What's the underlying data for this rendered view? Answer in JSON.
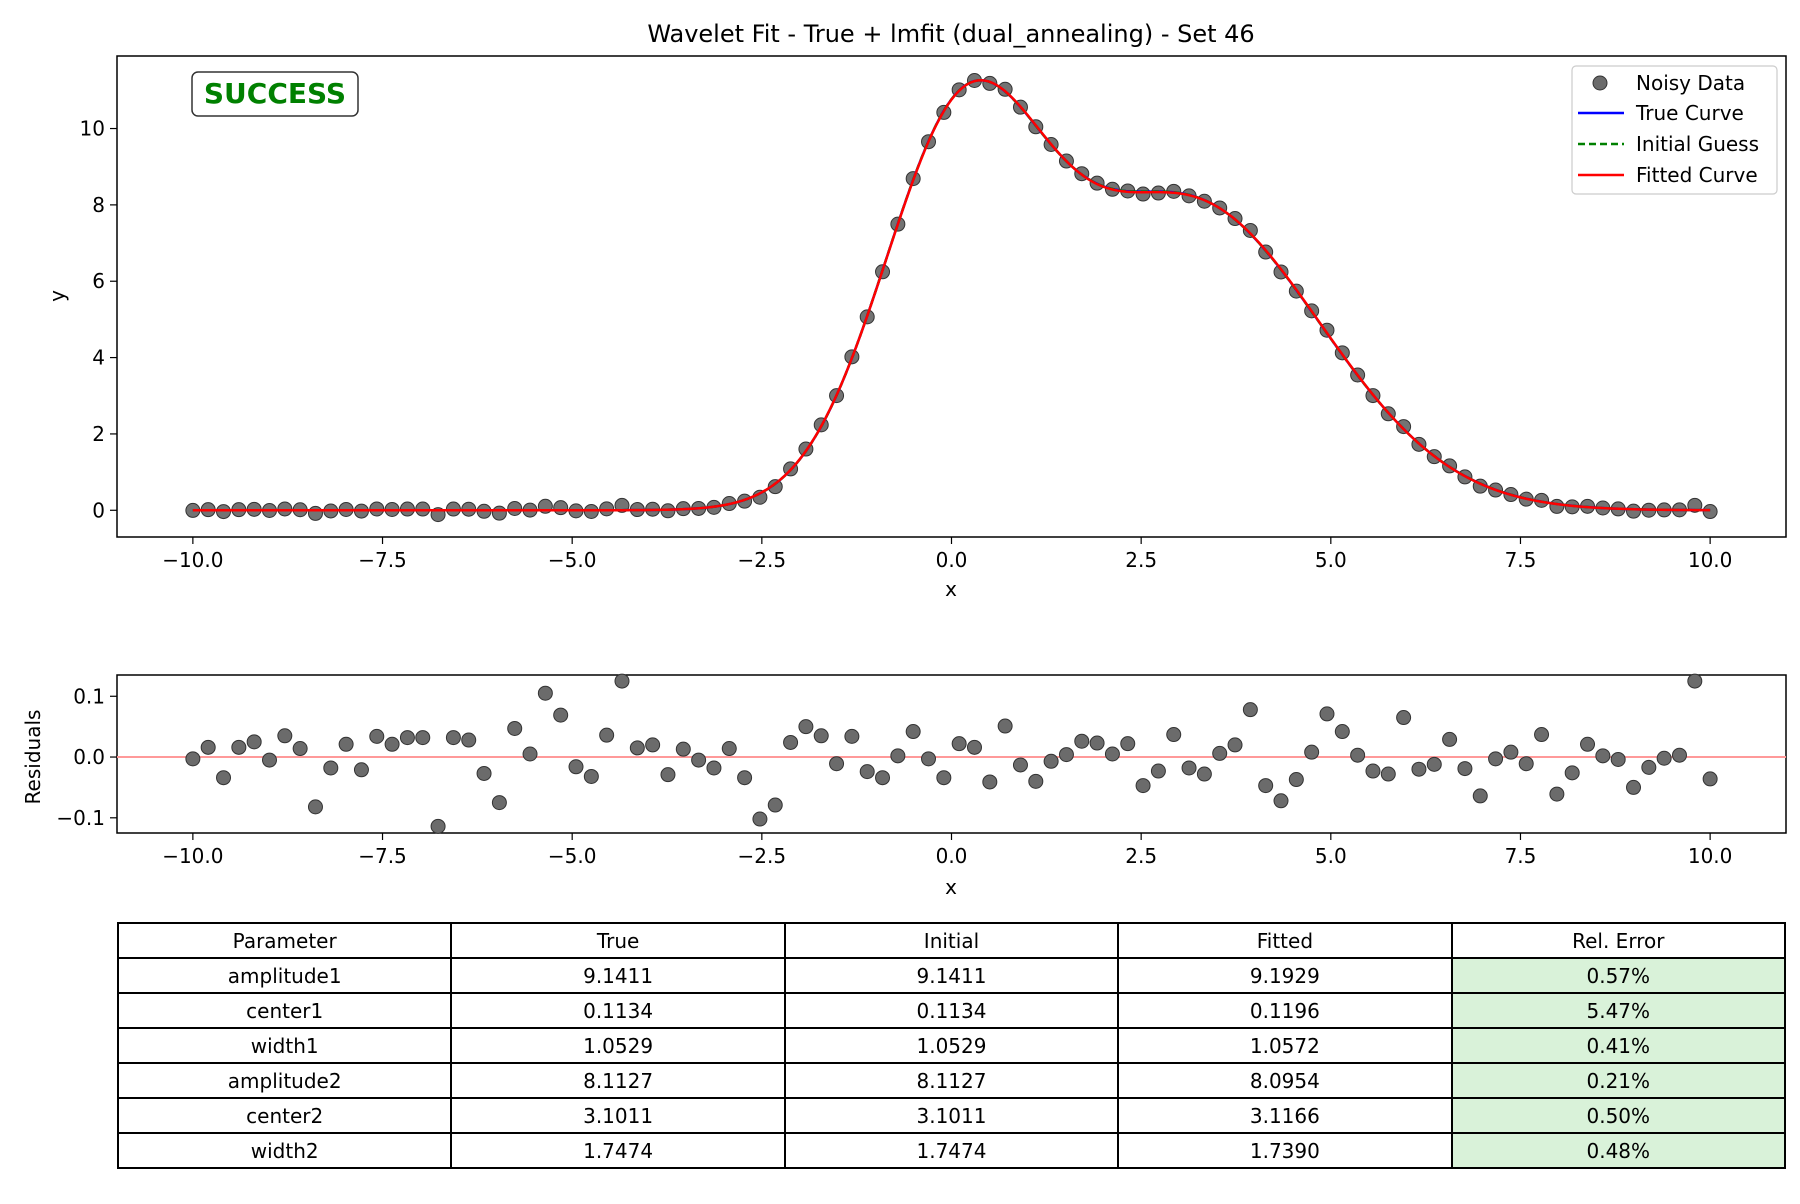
{
  "chart_data": [
    {
      "type": "line",
      "title": "Wavelet Fit - True + lmfit (dual_annealing) - Set 46",
      "xlabel": "x",
      "ylabel": "y",
      "xlim": [
        -11.0,
        11.0
      ],
      "ylim": [
        -0.7,
        11.9
      ],
      "xticks": [
        -10.0,
        -7.5,
        -5.0,
        -2.5,
        0.0,
        2.5,
        5.0,
        7.5,
        10.0
      ],
      "xtick_labels": [
        "−10.0",
        "−7.5",
        "−5.0",
        "−2.5",
        "0.0",
        "2.5",
        "5.0",
        "7.5",
        "10.0"
      ],
      "yticks": [
        0,
        2,
        4,
        6,
        8,
        10
      ],
      "ytick_labels": [
        "0",
        "2",
        "4",
        "6",
        "8",
        "10"
      ],
      "legend": {
        "placement": "top-right",
        "entries": [
          "Noisy Data",
          "True Curve",
          "Initial Guess",
          "Fitted Curve"
        ]
      },
      "status": "SUCCESS",
      "colors": {
        "noisy": "#6b6b6b",
        "true": "#0000ff",
        "initial": "#008000",
        "fitted": "#ff0000",
        "status": "#008000"
      },
      "model": {
        "form": "sum of two gaussians",
        "true": {
          "amplitude1": 9.1411,
          "center1": 0.1134,
          "width1": 1.0529,
          "amplitude2": 8.1127,
          "center2": 3.1011,
          "width2": 1.7474
        },
        "initial": {
          "amplitude1": 9.1411,
          "center1": 0.1134,
          "width1": 1.0529,
          "amplitude2": 8.1127,
          "center2": 3.1011,
          "width2": 1.7474
        },
        "fitted": {
          "amplitude1": 9.1929,
          "center1": 0.1196,
          "width1": 1.0572,
          "amplitude2": 8.0954,
          "center2": 3.1166,
          "width2": 1.739
        }
      },
      "x_range": [
        -10.0,
        10.0
      ],
      "n_points": 100,
      "series": [
        {
          "name": "Noisy Data",
          "kind": "scatter"
        },
        {
          "name": "True Curve",
          "kind": "line"
        },
        {
          "name": "Initial Guess",
          "kind": "dashed-line"
        },
        {
          "name": "Fitted Curve",
          "kind": "line"
        }
      ]
    },
    {
      "type": "scatter",
      "xlabel": "x",
      "ylabel": "Residuals",
      "xlim": [
        -11.0,
        11.0
      ],
      "ylim": [
        -0.125,
        0.135
      ],
      "xticks": [
        -10.0,
        -7.5,
        -5.0,
        -2.5,
        0.0,
        2.5,
        5.0,
        7.5,
        10.0
      ],
      "xtick_labels": [
        "−10.0",
        "−7.5",
        "−5.0",
        "−2.5",
        "0.0",
        "2.5",
        "5.0",
        "7.5",
        "10.0"
      ],
      "yticks": [
        -0.1,
        0.0,
        0.1
      ],
      "ytick_labels": [
        "−0.1",
        "0.0",
        "0.1"
      ],
      "zero_line_color": "#ff9999",
      "residuals": [
        -0.003,
        0.016,
        -0.034,
        0.016,
        0.025,
        -0.005,
        0.035,
        0.014,
        -0.082,
        -0.018,
        0.021,
        -0.021,
        0.034,
        0.021,
        0.032,
        0.032,
        -0.114,
        0.032,
        0.028,
        -0.027,
        -0.075,
        0.047,
        0.005,
        0.105,
        0.069,
        -0.016,
        -0.032,
        0.036,
        0.125,
        0.015,
        0.02,
        -0.029,
        0.013,
        -0.005,
        -0.018,
        0.014,
        -0.034,
        -0.102,
        -0.079,
        0.024,
        0.05,
        0.035,
        -0.011,
        0.034,
        -0.024,
        -0.034,
        0.002,
        0.042,
        -0.003,
        -0.034,
        0.022,
        0.016,
        -0.041,
        0.051,
        -0.013,
        -0.04,
        -0.007,
        0.004,
        0.026,
        0.023,
        0.005,
        0.022,
        -0.047,
        -0.023,
        0.037,
        -0.018,
        -0.028,
        0.006,
        0.02,
        0.078,
        -0.047,
        -0.072,
        -0.037,
        0.008,
        0.071,
        0.042,
        0.003,
        -0.023,
        -0.028,
        0.065,
        -0.02,
        -0.012,
        0.029,
        -0.019,
        -0.064,
        -0.003,
        0.008,
        -0.011,
        0.037,
        -0.061,
        -0.026,
        0.021,
        0.002,
        -0.004,
        -0.05,
        -0.017,
        -0.002,
        0.003,
        0.125,
        -0.036
      ]
    }
  ],
  "table": {
    "headers": [
      "Parameter",
      "True",
      "Initial",
      "Fitted",
      "Rel. Error"
    ],
    "rows": [
      [
        "amplitude1",
        "9.1411",
        "9.1411",
        "9.1929",
        "0.57%"
      ],
      [
        "center1",
        "0.1134",
        "0.1134",
        "0.1196",
        "5.47%"
      ],
      [
        "width1",
        "1.0529",
        "1.0529",
        "1.0572",
        "0.41%"
      ],
      [
        "amplitude2",
        "8.1127",
        "8.1127",
        "8.0954",
        "0.21%"
      ],
      [
        "center2",
        "3.1011",
        "3.1011",
        "3.1166",
        "0.50%"
      ],
      [
        "width2",
        "1.7474",
        "1.7474",
        "1.7390",
        "0.48%"
      ]
    ],
    "error_cell_color": "#d9f2d9"
  }
}
